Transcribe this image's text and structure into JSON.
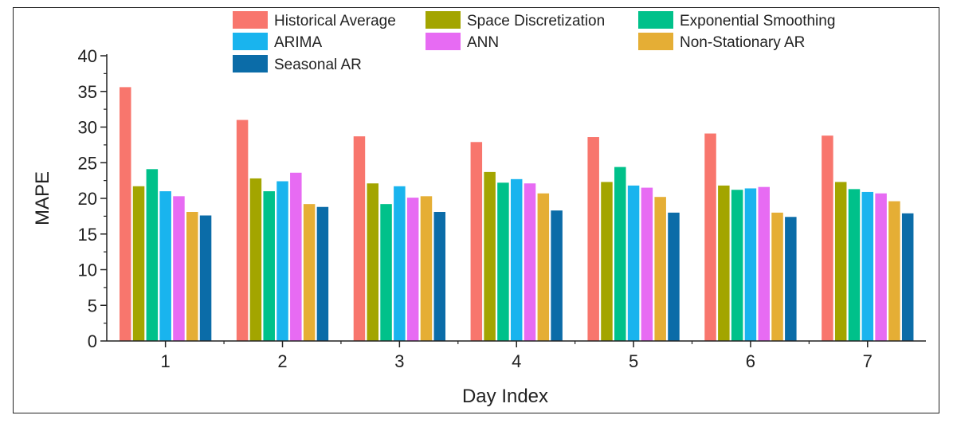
{
  "chart_data": {
    "type": "bar",
    "title": "",
    "xlabel": "Day Index",
    "ylabel": "MAPE",
    "ylim": [
      0,
      40
    ],
    "yticks": [
      0,
      5,
      10,
      15,
      20,
      25,
      30,
      35,
      40
    ],
    "grid": false,
    "legend_position": "top",
    "categories": [
      "1",
      "2",
      "3",
      "4",
      "5",
      "6",
      "7"
    ],
    "series": [
      {
        "name": "Historical Average",
        "color": "#F8766D",
        "values": [
          35.6,
          31.0,
          28.7,
          27.9,
          28.6,
          29.1,
          28.8
        ]
      },
      {
        "name": "Space Discretization",
        "color": "#A3A500",
        "values": [
          21.7,
          22.8,
          22.1,
          23.7,
          22.3,
          21.8,
          22.3
        ]
      },
      {
        "name": "Exponential Smoothing",
        "color": "#00C18A",
        "values": [
          24.1,
          21.0,
          19.2,
          22.2,
          24.4,
          21.2,
          21.3
        ]
      },
      {
        "name": "ARIMA",
        "color": "#19B4EE",
        "values": [
          21.0,
          22.4,
          21.7,
          22.7,
          21.8,
          21.4,
          20.9
        ]
      },
      {
        "name": "ANN",
        "color": "#E76BF3",
        "values": [
          20.3,
          23.6,
          20.1,
          22.1,
          21.5,
          21.6,
          20.7
        ]
      },
      {
        "name": "Non-Stationary AR",
        "color": "#E5AE35",
        "values": [
          18.1,
          19.2,
          20.3,
          20.7,
          20.2,
          18.0,
          19.6
        ]
      },
      {
        "name": "Seasonal AR",
        "color": "#0B6CA8",
        "values": [
          17.6,
          18.8,
          18.1,
          18.3,
          18.0,
          17.4,
          17.9
        ]
      }
    ]
  }
}
